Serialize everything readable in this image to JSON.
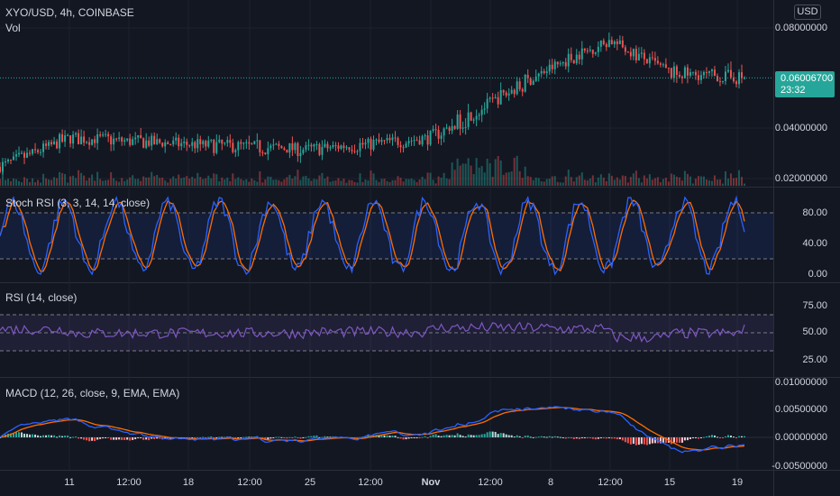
{
  "header": {
    "symbol_line": "XYO/USD, 4h, COINBASE",
    "volume_label": "Vol",
    "currency_button": "USD"
  },
  "price_tag": {
    "price": "0.06006700",
    "countdown": "23:32"
  },
  "colors": {
    "background": "#131722",
    "up": "#26a69a",
    "down": "#ef5350",
    "fast_line": "#2962ff",
    "slow_line": "#ff6d00",
    "rsi_line": "#7e57c2",
    "grid": "#1e222d"
  },
  "panes": {
    "price": {
      "axis_labels": [
        "0.08000000",
        "0.04000000",
        "0.02000000"
      ]
    },
    "stoch": {
      "title": "Stoch RSI (3, 3, 14, 14, close)",
      "axis_labels": [
        "80.00",
        "40.00",
        "0.00"
      ]
    },
    "rsi": {
      "title": "RSI (14, close)",
      "axis_labels": [
        "75.00",
        "50.00",
        "25.00"
      ]
    },
    "macd": {
      "title": "MACD (12, 26, close, 9, EMA, EMA)",
      "axis_labels": [
        "0.01000000",
        "0.00500000",
        "0.00000000",
        "-0.00500000"
      ]
    }
  },
  "x_axis": {
    "labels": [
      "11",
      "12:00",
      "18",
      "12:00",
      "25",
      "12:00",
      "Nov",
      "12:00",
      "8",
      "12:00",
      "15",
      "19"
    ]
  },
  "chart_data": {
    "type": "candlestick",
    "symbol": "XYO/USD",
    "interval": "4h",
    "exchange": "COINBASE",
    "last_price": 0.060067,
    "price_axis_ticks": [
      0.08,
      0.04,
      0.02
    ],
    "approx_price_path": [
      {
        "t": "start",
        "price": 0.0245
      },
      {
        "t": "11",
        "price": 0.036
      },
      {
        "t": "18",
        "price": 0.0335
      },
      {
        "t": "25",
        "price": 0.0315
      },
      {
        "t": "Nov",
        "price": 0.036
      },
      {
        "t": "8",
        "price": 0.064
      },
      {
        "t": "12:00 (after 8)",
        "price": 0.075
      },
      {
        "t": "15",
        "price": 0.062
      },
      {
        "t": "19",
        "price": 0.06
      }
    ],
    "stoch_rsi": {
      "k_period": 3,
      "d_period": 3,
      "rsi_period": 14,
      "stoch_period": 14,
      "source": "close",
      "levels": [
        80,
        20
      ],
      "axis_ticks": [
        80,
        40,
        0
      ]
    },
    "rsi": {
      "period": 14,
      "source": "close",
      "levels": [
        70,
        50,
        30
      ],
      "axis_ticks": [
        75,
        50,
        25
      ]
    },
    "macd": {
      "fast": 12,
      "slow": 26,
      "signal": 9,
      "source": "close",
      "ma": "EMA",
      "axis_ticks": [
        0.01,
        0.005,
        0.0,
        -0.005
      ]
    }
  }
}
